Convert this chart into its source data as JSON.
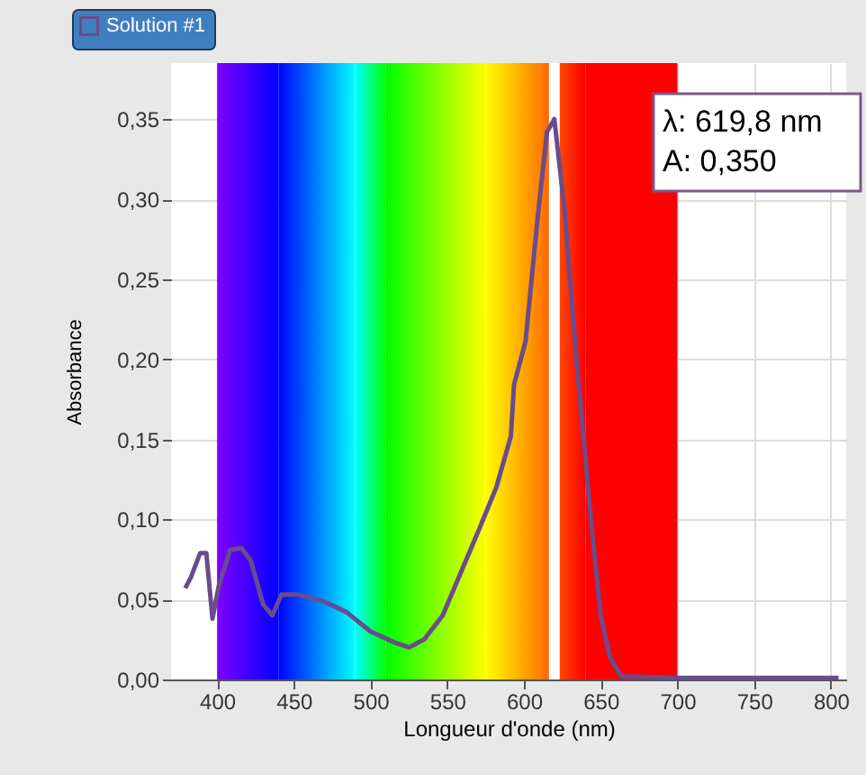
{
  "chart_data": {
    "type": "line",
    "xlabel": "Longueur d'onde (nm)",
    "ylabel": "Absorbance",
    "xlim": [
      370,
      810
    ],
    "ylim": [
      0,
      0.385
    ],
    "xticks": [
      400,
      450,
      500,
      550,
      600,
      650,
      700,
      750,
      800
    ],
    "yticks": [
      {
        "value": 0,
        "label": "0,00"
      },
      {
        "value": 0.05,
        "label": "0,05"
      },
      {
        "value": 0.1,
        "label": "0,10"
      },
      {
        "value": 0.15,
        "label": "0,15"
      },
      {
        "value": 0.2,
        "label": "0,20"
      },
      {
        "value": 0.25,
        "label": "0,25"
      },
      {
        "value": 0.3,
        "label": "0,30"
      },
      {
        "value": 0.35,
        "label": "0,35"
      }
    ],
    "grid": true,
    "legend": "top left",
    "marker": "none",
    "line_style": "solid",
    "x": [
      379.3,
      383,
      389,
      393,
      397,
      401,
      408.5,
      416,
      422,
      430,
      436,
      442,
      453,
      469,
      484.5,
      500,
      516,
      525,
      535,
      547,
      558.5,
      570,
      582,
      591.5,
      593.5,
      601,
      609,
      615,
      619.8,
      626.5,
      634.5,
      638,
      644,
      650,
      656,
      663.5,
      700,
      750,
      805
    ],
    "series": [
      {
        "name": "Solution #1",
        "color": "#6a4c8c",
        "values": [
          0.057,
          0.064,
          0.079,
          0.079,
          0.038,
          0.058,
          0.081,
          0.082,
          0.074,
          0.047,
          0.04,
          0.053,
          0.053,
          0.049,
          0.042,
          0.03,
          0.023,
          0.02,
          0.025,
          0.04,
          0.066,
          0.092,
          0.12,
          0.152,
          0.184,
          0.211,
          0.289,
          0.342,
          0.35,
          0.293,
          0.196,
          0.16,
          0.096,
          0.04,
          0.014,
          0.002,
          0.001,
          0.001,
          0.001
        ]
      }
    ],
    "bands": [
      {
        "axis": "x",
        "from": 400,
        "to": 440,
        "color": "#8000ff"
      },
      {
        "axis": "x",
        "from": 440,
        "to": 490,
        "color": "#0000ff"
      },
      {
        "axis": "x",
        "from": 490,
        "to": 510,
        "color": "#00ffff"
      },
      {
        "axis": "x",
        "from": 510,
        "to": 575,
        "color": "#00ff00"
      },
      {
        "axis": "x",
        "from": 575,
        "to": 610,
        "color": "#ffff00"
      },
      {
        "axis": "x",
        "from": 610,
        "to": 640,
        "color": "#ff8000"
      },
      {
        "axis": "x",
        "from": 640,
        "to": 700,
        "color": "#ff0000"
      }
    ],
    "ref_lines": [
      {
        "axis": "x",
        "value": 619.8,
        "color": "#ffffff"
      }
    ],
    "annotations": [
      "λ: 619,8 nm\nA: 0,350"
    ]
  }
}
